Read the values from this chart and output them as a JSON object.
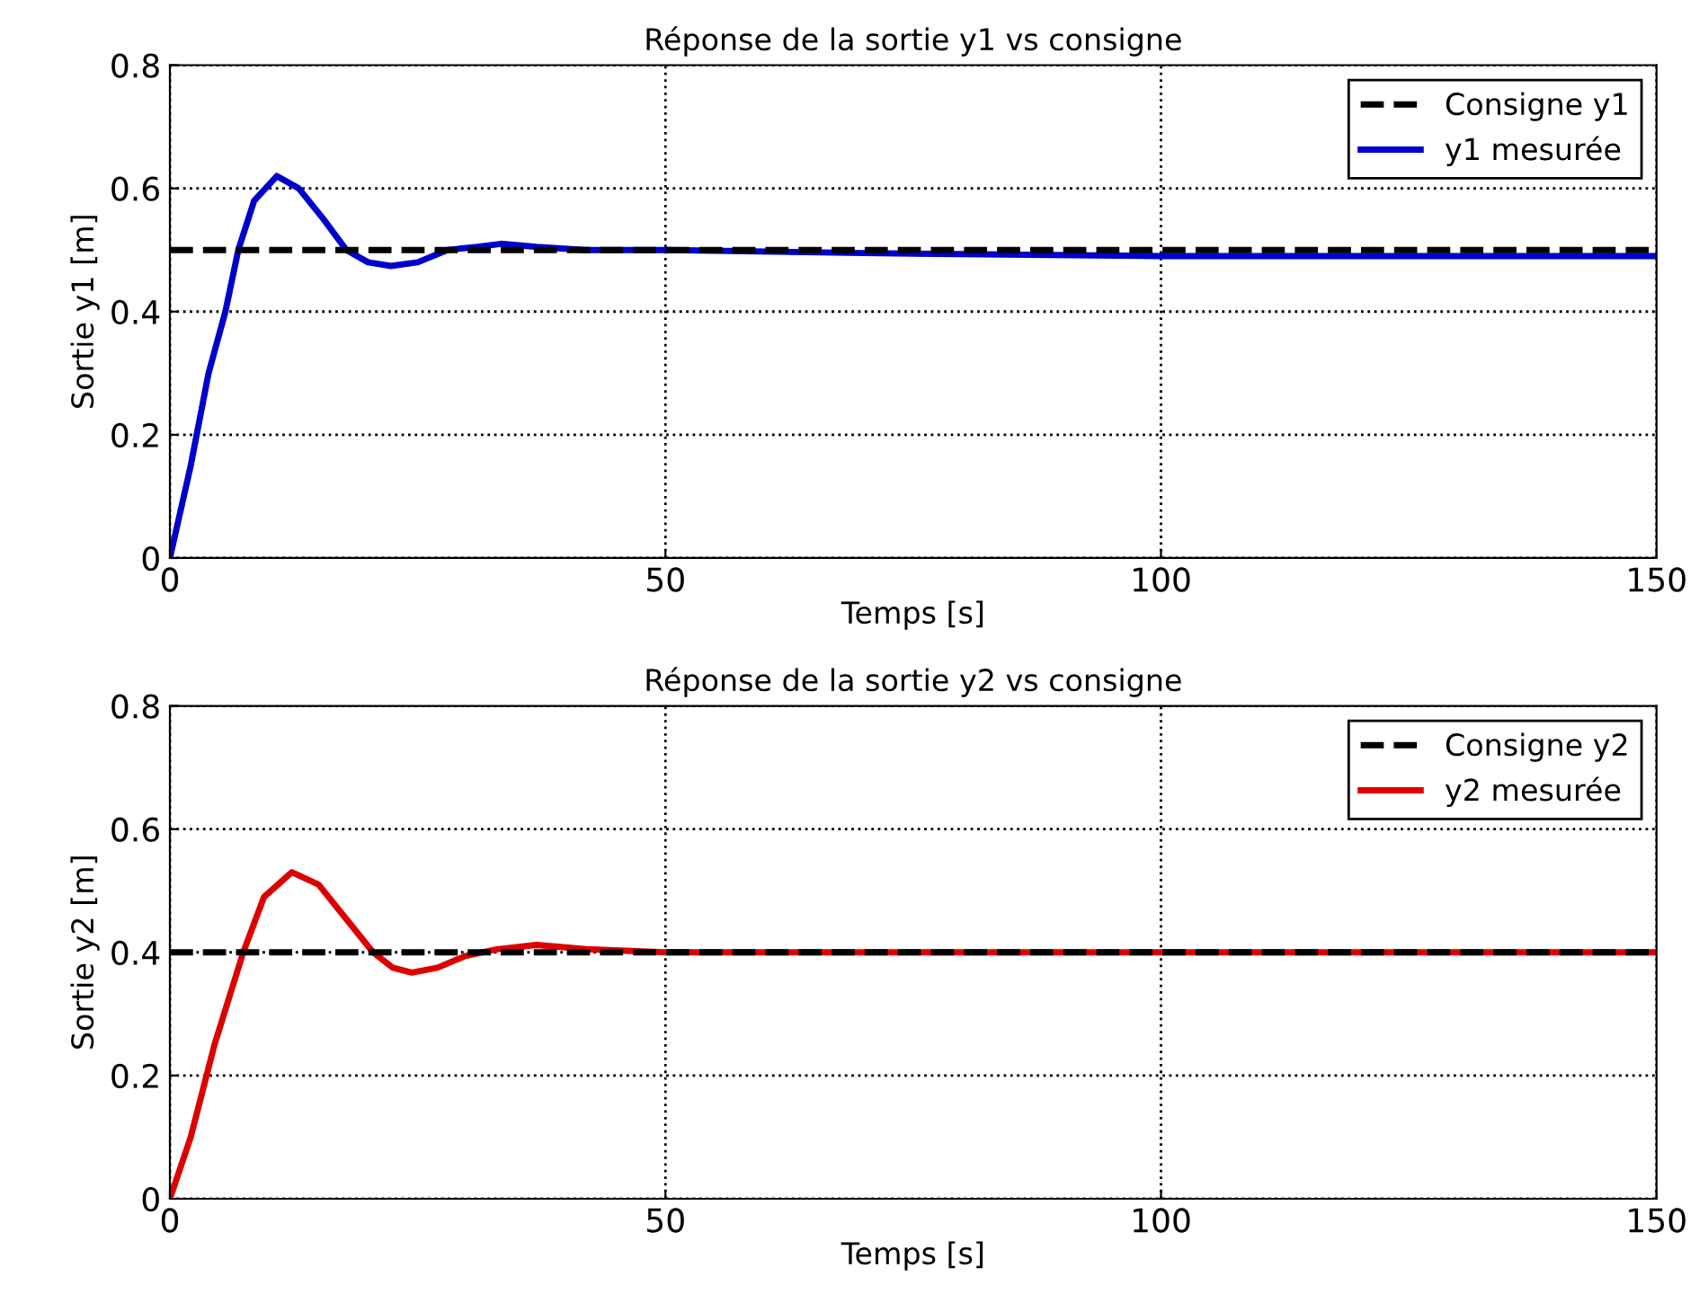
{
  "chart_data": [
    {
      "type": "line",
      "title": "Réponse de la sortie y1 vs consigne",
      "xlabel": "Temps [s]",
      "ylabel": "Sortie y1 [m]",
      "xlim": [
        0,
        150
      ],
      "ylim": [
        0,
        0.8
      ],
      "xticks": [
        0,
        50,
        100,
        150
      ],
      "yticks": [
        0,
        0.2,
        0.4,
        0.6,
        0.8
      ],
      "grid": true,
      "legend": "top right",
      "series": [
        {
          "name": "Consigne y1",
          "color": "#000000",
          "line_style": "dashed",
          "x": [
            0,
            150
          ],
          "values": [
            0.5,
            0.5
          ]
        },
        {
          "name": "y1 mesurée",
          "color": "#0000cc",
          "line_style": "solid",
          "x": [
            0,
            2.1,
            3.9,
            5.6,
            6.9,
            8.5,
            10.8,
            13,
            15.5,
            17.8,
            20,
            22.3,
            25,
            28,
            31,
            33.4,
            37,
            42,
            50,
            70,
            100,
            125,
            150
          ],
          "values": [
            0,
            0.15,
            0.3,
            0.4,
            0.5,
            0.58,
            0.62,
            0.6,
            0.55,
            0.5,
            0.48,
            0.474,
            0.48,
            0.5,
            0.505,
            0.51,
            0.505,
            0.5,
            0.5,
            0.495,
            0.49,
            0.49,
            0.49
          ]
        }
      ]
    },
    {
      "type": "line",
      "title": "Réponse de la sortie y2 vs consigne",
      "xlabel": "Temps [s]",
      "ylabel": "Sortie y2 [m]",
      "xlim": [
        0,
        150
      ],
      "ylim": [
        0,
        0.8
      ],
      "xticks": [
        0,
        50,
        100,
        150
      ],
      "yticks": [
        0,
        0.2,
        0.4,
        0.6,
        0.8
      ],
      "grid": true,
      "legend": "top right",
      "series": [
        {
          "name": "Consigne y2",
          "color": "#000000",
          "line_style": "dashed",
          "x": [
            0,
            150
          ],
          "values": [
            0.4,
            0.4
          ]
        },
        {
          "name": "y2 mesurée",
          "color": "#dd0000",
          "line_style": "solid",
          "x": [
            0,
            2.1,
            4.5,
            7.4,
            9.5,
            12.3,
            15,
            18,
            20.5,
            22.5,
            24.4,
            27,
            29.8,
            33,
            37,
            42,
            50,
            100,
            150
          ],
          "values": [
            0,
            0.1,
            0.25,
            0.4,
            0.49,
            0.53,
            0.51,
            0.45,
            0.4,
            0.375,
            0.367,
            0.375,
            0.394,
            0.405,
            0.412,
            0.405,
            0.4,
            0.4,
            0.4
          ]
        }
      ]
    }
  ]
}
